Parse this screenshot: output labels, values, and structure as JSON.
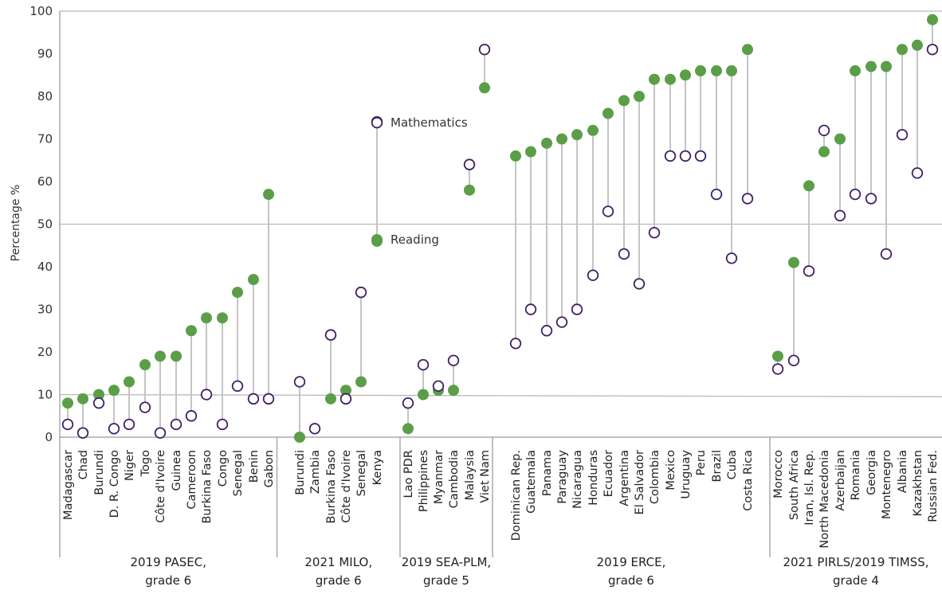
{
  "colors": {
    "reading": "#5b9e48",
    "mathematics_stroke": "#3f1f63",
    "stem": "#c4c4c4",
    "grid": "#b9b9b9",
    "axis": "#aaaaaa"
  },
  "chart_data": {
    "type": "dot-plot",
    "ylabel": "Percentage %",
    "ylim": [
      0,
      100
    ],
    "yticks": [
      0,
      10,
      20,
      30,
      40,
      50,
      60,
      70,
      80,
      90,
      100
    ],
    "legend": {
      "mathematics": "Mathematics",
      "reading": "Reading"
    },
    "groups": [
      {
        "label_line1": "2019 PASEC,",
        "label_line2": "grade 6",
        "countries": [
          {
            "name": "Madagascar",
            "reading": 8,
            "math": 3
          },
          {
            "name": "Chad",
            "reading": 9,
            "math": 1
          },
          {
            "name": "Burundi",
            "reading": 10,
            "math": 8
          },
          {
            "name": "D. R. Congo",
            "reading": 11,
            "math": 2
          },
          {
            "name": "Niger",
            "reading": 13,
            "math": 3
          },
          {
            "name": "Togo",
            "reading": 17,
            "math": 7
          },
          {
            "name": "Côte d'Ivoire",
            "reading": 19,
            "math": 1
          },
          {
            "name": "Guinea",
            "reading": 19,
            "math": 3
          },
          {
            "name": "Cameroon",
            "reading": 25,
            "math": 5
          },
          {
            "name": "Burkina Faso",
            "reading": 28,
            "math": 10
          },
          {
            "name": "Congo",
            "reading": 28,
            "math": 3
          },
          {
            "name": "Senegal",
            "reading": 34,
            "math": 12
          },
          {
            "name": "Benin",
            "reading": 37,
            "math": 9
          },
          {
            "name": "Gabon",
            "reading": 57,
            "math": 9
          }
        ]
      },
      {
        "label_line1": "2021 MILO,",
        "label_line2": "grade 6",
        "countries": [
          {
            "name": "Burundi",
            "reading": 0,
            "math": 13
          },
          {
            "name": "Zambia",
            "reading": 2,
            "math": 2
          },
          {
            "name": "Burkina Faso",
            "reading": 9,
            "math": 24
          },
          {
            "name": "Côte d'Ivoire",
            "reading": 11,
            "math": 9
          },
          {
            "name": "Senegal",
            "reading": 13,
            "math": 34
          },
          {
            "name": "Kenya",
            "reading": 46,
            "math": 74
          }
        ]
      },
      {
        "label_line1": "2019 SEA-PLM,",
        "label_line2": "grade 5",
        "countries": [
          {
            "name": "Lao PDR",
            "reading": 2,
            "math": 8
          },
          {
            "name": "Philippines",
            "reading": 10,
            "math": 17
          },
          {
            "name": "Myanmar",
            "reading": 11,
            "math": 12
          },
          {
            "name": "Cambodia",
            "reading": 11,
            "math": 18
          },
          {
            "name": "Malaysia",
            "reading": 58,
            "math": 64
          },
          {
            "name": "Viet Nam",
            "reading": 82,
            "math": 91
          }
        ]
      },
      {
        "label_line1": "2019 ERCE,",
        "label_line2": "grade 6",
        "countries": [
          {
            "name": "Dominican Rep.",
            "reading": 66,
            "math": 22
          },
          {
            "name": "Guatemala",
            "reading": 67,
            "math": 30
          },
          {
            "name": "Panama",
            "reading": 69,
            "math": 25
          },
          {
            "name": "Paraguay",
            "reading": 70,
            "math": 27
          },
          {
            "name": "Nicaragua",
            "reading": 71,
            "math": 30
          },
          {
            "name": "Honduras",
            "reading": 72,
            "math": 38
          },
          {
            "name": "Ecuador",
            "reading": 76,
            "math": 53
          },
          {
            "name": "Argentina",
            "reading": 79,
            "math": 43
          },
          {
            "name": "El Salvador",
            "reading": 80,
            "math": 36
          },
          {
            "name": "Colombia",
            "reading": 84,
            "math": 48
          },
          {
            "name": "Mexico",
            "reading": 84,
            "math": 66
          },
          {
            "name": "Uruguay",
            "reading": 85,
            "math": 66
          },
          {
            "name": "Peru",
            "reading": 86,
            "math": 66
          },
          {
            "name": "Brazil",
            "reading": 86,
            "math": 57
          },
          {
            "name": "Cuba",
            "reading": 86,
            "math": 42
          },
          {
            "name": "Costa Rica",
            "reading": 91,
            "math": 56
          }
        ]
      },
      {
        "label_line1": "2021 PIRLS/2019 TIMSS,",
        "label_line2": "grade 4",
        "countries": [
          {
            "name": "Morocco",
            "reading": 19,
            "math": 16
          },
          {
            "name": "South Africa",
            "reading": 41,
            "math": 18
          },
          {
            "name": "Iran, Isl. Rep.",
            "reading": 59,
            "math": 39
          },
          {
            "name": "North Macedonia",
            "reading": 67,
            "math": 72
          },
          {
            "name": "Azerbaijan",
            "reading": 70,
            "math": 52
          },
          {
            "name": "Romania",
            "reading": 86,
            "math": 57
          },
          {
            "name": "Georgia",
            "reading": 87,
            "math": 56
          },
          {
            "name": "Montenegro",
            "reading": 87,
            "math": 43
          },
          {
            "name": "Albania",
            "reading": 91,
            "math": 71
          },
          {
            "name": "Kazakhstan",
            "reading": 92,
            "math": 62
          },
          {
            "name": "Russian Fed.",
            "reading": 98,
            "math": 91
          }
        ]
      }
    ]
  }
}
